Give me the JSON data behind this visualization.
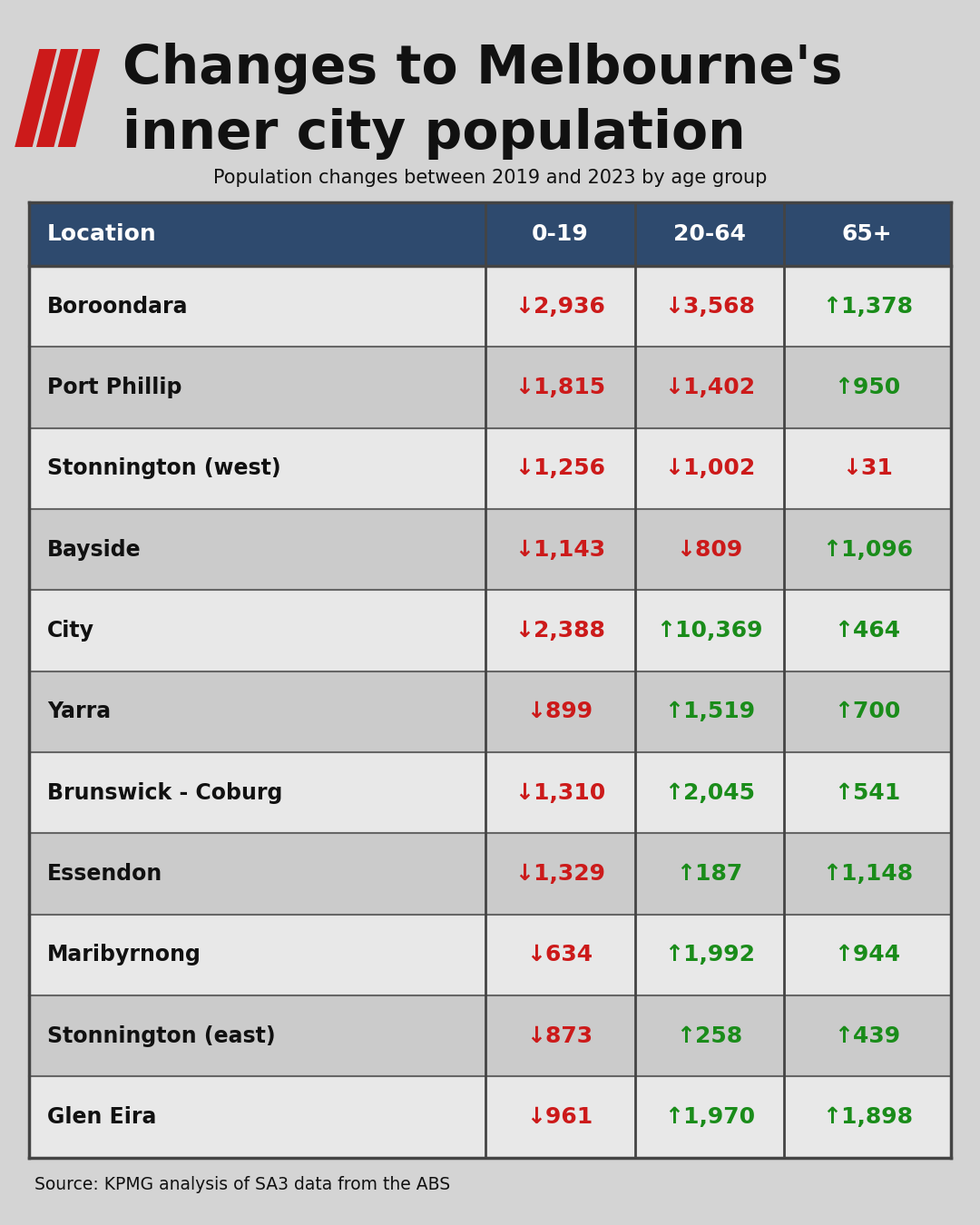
{
  "title_line1": "Changes to Melbourne's",
  "title_line2": "inner city population",
  "subtitle": "Population changes between 2019 and 2023 by age group",
  "source": "Source: KPMG analysis of SA3 data from the ABS",
  "bg_color": "#d4d4d4",
  "header_bg": "#2e4a6e",
  "header_text_color": "#ffffff",
  "row_bg_light": "#e8e8e8",
  "row_bg_dark": "#cbcbcb",
  "border_color": "#444444",
  "increase_color": "#1a8c1a",
  "decrease_color": "#cc1a1a",
  "location_text_color": "#111111",
  "columns": [
    "Location",
    "0-19",
    "20-64",
    "65+"
  ],
  "rows": [
    {
      "location": "Boroondara",
      "v0_19": -2936,
      "v20_64": -3568,
      "v65": 1378
    },
    {
      "location": "Port Phillip",
      "v0_19": -1815,
      "v20_64": -1402,
      "v65": 950
    },
    {
      "location": "Stonnington (west)",
      "v0_19": -1256,
      "v20_64": -1002,
      "v65": -31
    },
    {
      "location": "Bayside",
      "v0_19": -1143,
      "v20_64": -809,
      "v65": 1096
    },
    {
      "location": "City",
      "v0_19": -2388,
      "v20_64": 10369,
      "v65": 464
    },
    {
      "location": "Yarra",
      "v0_19": -899,
      "v20_64": 1519,
      "v65": 700
    },
    {
      "location": "Brunswick - Coburg",
      "v0_19": -1310,
      "v20_64": 2045,
      "v65": 541
    },
    {
      "location": "Essendon",
      "v0_19": -1329,
      "v20_64": 187,
      "v65": 1148
    },
    {
      "location": "Maribyrnong",
      "v0_19": -634,
      "v20_64": 1992,
      "v65": 944
    },
    {
      "location": "Stonnington (east)",
      "v0_19": -873,
      "v20_64": 258,
      "v65": 439
    },
    {
      "location": "Glen Eira",
      "v0_19": -961,
      "v20_64": 1970,
      "v65": 1898
    }
  ]
}
